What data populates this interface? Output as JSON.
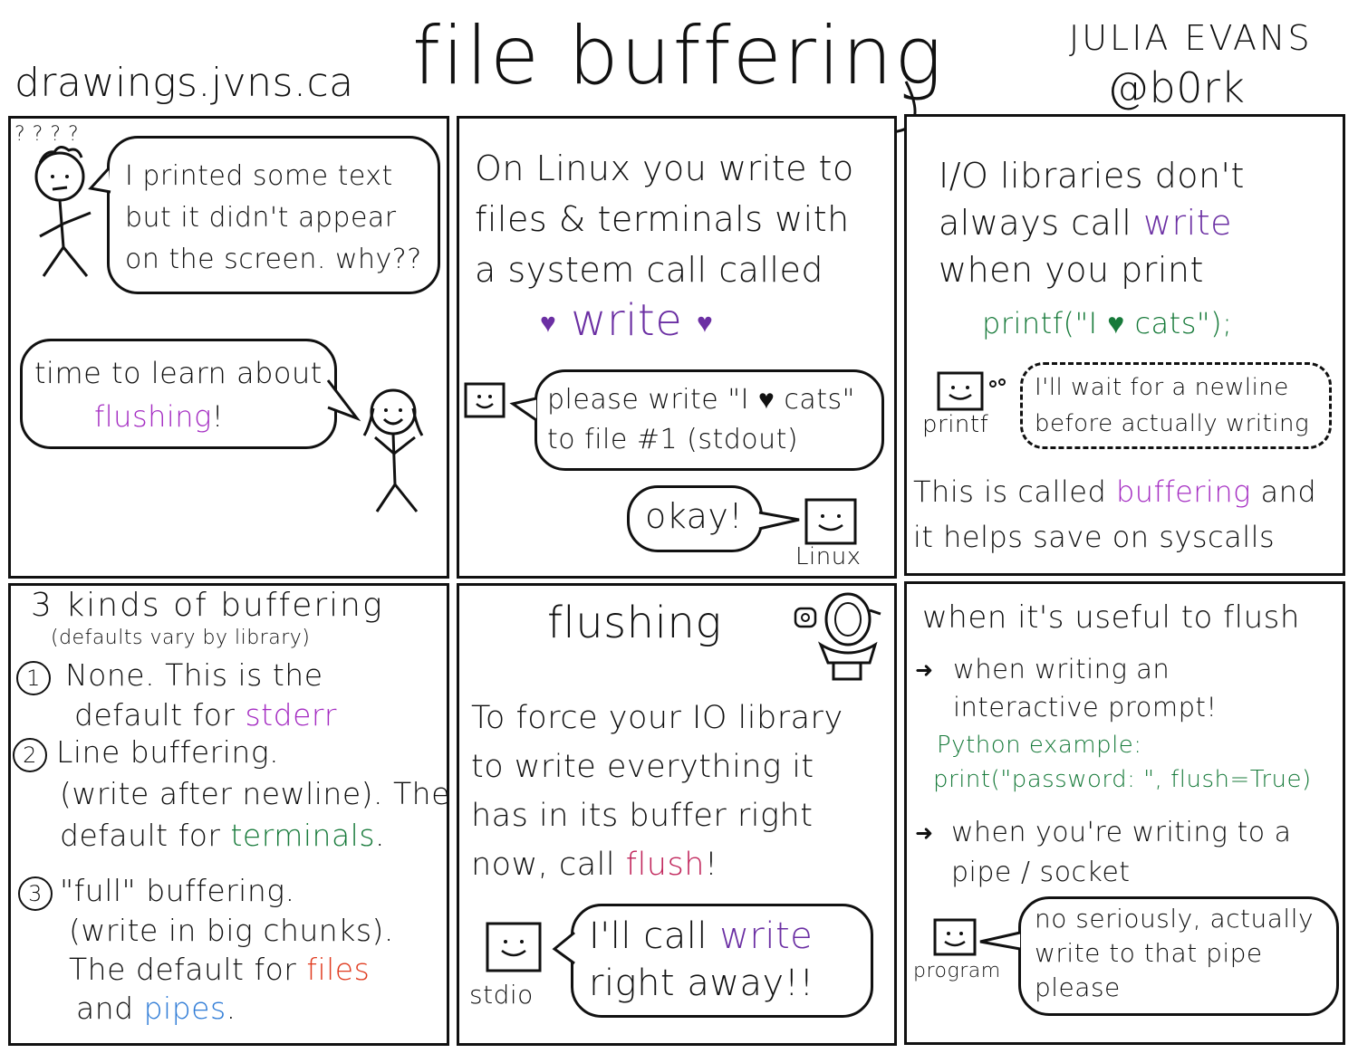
{
  "header": {
    "site": "drawings.jvns.ca",
    "title": "file buffering",
    "author_name": "JULIA EVANS",
    "author_handle": "@b0rk"
  },
  "panel1": {
    "question_marks": "? ? ? ?",
    "speech_lines": [
      "I printed some text",
      "but it didn't appear",
      "on the screen. why??"
    ],
    "reply_line1": "time to learn about",
    "reply_word": "flushing",
    "reply_exclaim": "!"
  },
  "panel2": {
    "intro_lines": [
      "On Linux you write to",
      "files & terminals with",
      "a system call called"
    ],
    "write_word": "write",
    "heart": "♥",
    "request_lines": [
      "please write \"I ♥ cats\"",
      "to file #1 (stdout)"
    ],
    "okay": "okay!",
    "linux_label": "Linux"
  },
  "panel3": {
    "intro_line1": "I/O libraries don't",
    "intro_line2_pre": "always call",
    "intro_write": "write",
    "intro_line3": "when you print",
    "code": "printf(\"I ♥ cats\");",
    "thought_lines": [
      "I'll wait for a newline",
      "before actually writing"
    ],
    "printf_label": "printf",
    "footer_pre": "This is called",
    "footer_word": "buffering",
    "footer_post": "and",
    "footer_line2": "it helps save on syscalls"
  },
  "panel4": {
    "title": "3 kinds of buffering",
    "subtitle": "(defaults vary by library)",
    "item1_num": "1",
    "item1_line1": "None. This is the",
    "item1_line2_pre": "default for",
    "item1_word": "stderr",
    "item2_num": "2",
    "item2_line1": "Line buffering.",
    "item2_line2": "(write after newline). The",
    "item2_line3_pre": "default for",
    "item2_word": "terminals",
    "item2_line3_post": ".",
    "item3_num": "3",
    "item3_line1": "\"full\" buffering.",
    "item3_line2": "(write in big chunks).",
    "item3_line3_pre": "The default for",
    "item3_word1": "files",
    "item3_line4_pre": "and",
    "item3_word2": "pipes",
    "item3_line4_post": "."
  },
  "panel5": {
    "title": "flushing",
    "body_lines": [
      "To force your IO library",
      "to write everything it",
      "has in its buffer right"
    ],
    "body_line4_pre": "now, call",
    "body_word": "flush",
    "body_exclaim": "!",
    "reply_pre": "I'll call",
    "reply_word": "write",
    "reply_line2": "right away!!",
    "stdio_label": "stdio"
  },
  "panel6": {
    "title": "when it's useful to flush",
    "item1_lines": [
      "when writing an",
      "interactive prompt!"
    ],
    "example_label": "Python example:",
    "example_code": "print(\"password: \", flush=True)",
    "item2_lines": [
      "when you're writing to a",
      "pipe / socket"
    ],
    "bubble_lines": [
      "no seriously, actually",
      "write to that pipe",
      "please"
    ],
    "program_label": "program"
  }
}
